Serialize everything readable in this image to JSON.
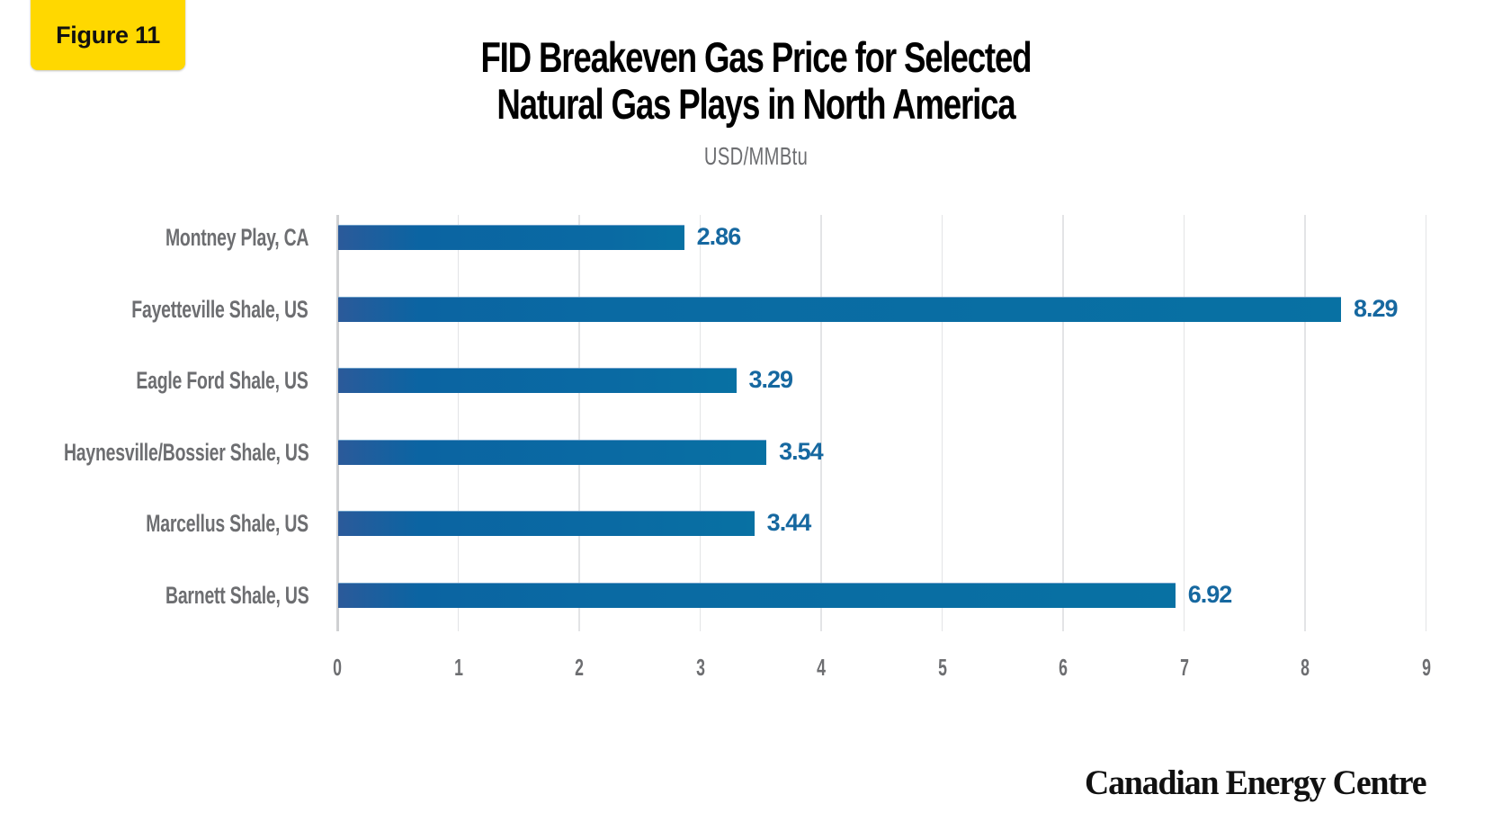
{
  "badge": {
    "label": "Figure 11",
    "color": "#ffd800"
  },
  "header": {
    "title_line1": "FID Breakeven Gas Price for Selected",
    "title_line2": "Natural Gas Plays in North America",
    "subtitle": "USD/MMBtu"
  },
  "footer": {
    "logo_text": "Canadian Energy Centre"
  },
  "colors": {
    "bar_start": "#2b5a9a",
    "bar_end": "#0871a3",
    "value_label": "#1668a0",
    "axis_text": "#6d6e71"
  },
  "axis": {
    "ticks": [
      "0",
      "1",
      "2",
      "3",
      "4",
      "5",
      "6",
      "7",
      "8",
      "9"
    ]
  },
  "chart_data": {
    "type": "bar",
    "orientation": "horizontal",
    "title": "FID Breakeven Gas Price for Selected Natural Gas Plays in North America",
    "subtitle": "USD/MMBtu",
    "xlabel": "",
    "ylabel": "",
    "xlim": [
      0,
      9
    ],
    "x_ticks": [
      0,
      1,
      2,
      3,
      4,
      5,
      6,
      7,
      8,
      9
    ],
    "grid": true,
    "legend": null,
    "categories": [
      "Montney Play, CA",
      "Fayetteville Shale, US",
      "Eagle Ford Shale, US",
      "Haynesville/Bossier Shale, US",
      "Marcellus Shale, US",
      "Barnett Shale, US"
    ],
    "values": [
      2.86,
      8.29,
      3.29,
      3.54,
      3.44,
      6.92
    ],
    "value_labels": [
      "2.86",
      "8.29",
      "3.29",
      "3.54",
      "3.44",
      "6.92"
    ],
    "units": "USD/MMBtu"
  }
}
